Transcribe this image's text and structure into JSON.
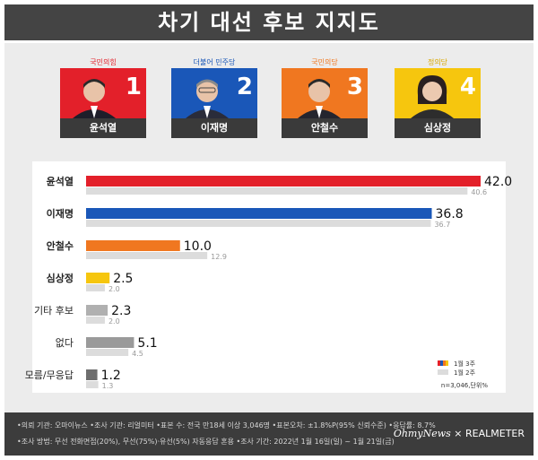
{
  "header": {
    "title": "차기 대선 후보 지지도"
  },
  "candidates": [
    {
      "party": "국민의힘",
      "name": "윤석열",
      "number": "1",
      "color": "#e3202a",
      "party_color": "#e3202a"
    },
    {
      "party": "더불어 민주당",
      "name": "이재명",
      "number": "2",
      "color": "#1a57b8",
      "party_color": "#1a57b8"
    },
    {
      "party": "국민의당",
      "name": "안철수",
      "number": "3",
      "color": "#f07720",
      "party_color": "#f07720"
    },
    {
      "party": "정의당",
      "name": "심상정",
      "number": "4",
      "color": "#f6c60e",
      "party_color": "#d9a800"
    }
  ],
  "chart_data": {
    "type": "bar",
    "orientation": "horizontal",
    "categories": [
      "윤석열",
      "이재명",
      "안철수",
      "심상정",
      "기타 후보",
      "없다",
      "모름/무응답"
    ],
    "series": [
      {
        "name": "1월 3주",
        "values": [
          42.0,
          36.8,
          10.0,
          2.5,
          2.3,
          5.1,
          1.2
        ],
        "colors": [
          "#e3202a",
          "#1a57b8",
          "#f07720",
          "#f6c60e",
          "#b0b0b0",
          "#9a9a9a",
          "#6e6e6e"
        ]
      },
      {
        "name": "1월 2주",
        "values": [
          40.6,
          36.7,
          12.9,
          2.0,
          2.0,
          4.5,
          1.3
        ],
        "color": "#dcdcdc"
      }
    ],
    "value_labels_current": [
      "42.0",
      "36.8",
      "10.0",
      "2.5",
      "2.3",
      "5.1",
      "1.2"
    ],
    "value_labels_previous": [
      "40.6",
      "36.7",
      "12.9",
      "2.0",
      "2.0",
      "4.5",
      "1.3"
    ],
    "xlim": [
      0,
      42
    ],
    "legend_position": "bottom-right",
    "note": "n=3,046,단위%"
  },
  "footer": {
    "line1": "•의뢰 기관: 오마이뉴스 •조사 기관: 리얼미터 •표본 수: 전국 만18세 이상 3,046명 •표본오차: ±1.8%P(95% 신뢰수준) •응답률: 8.7%",
    "line2": "•조사 방법: 무선 전화면접(20%), 무선(75%)·유선(5%) 자동응답 혼용 •조사 기간: 2022년 1월 16일(일) ~ 1월 21일(금)",
    "brand_left": "OhmyNews",
    "brand_sep": "×",
    "brand_right": "REALMETER"
  }
}
